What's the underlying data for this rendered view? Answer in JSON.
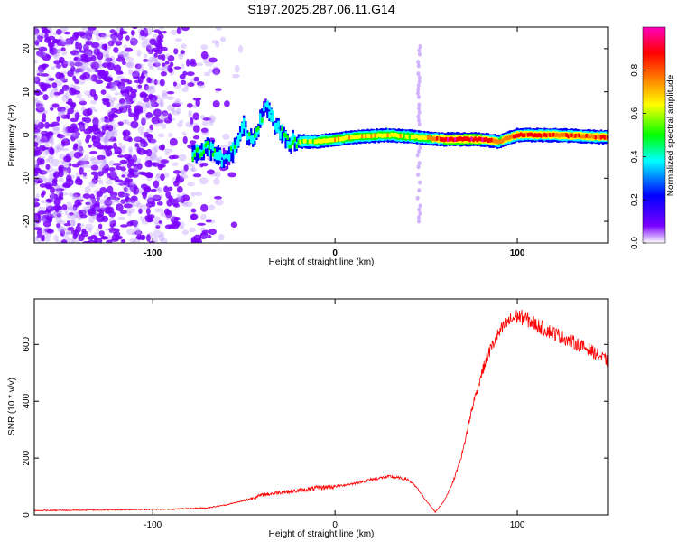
{
  "title": "S197.2025.287.06.11.G14",
  "chart_data": [
    {
      "type": "heatmap",
      "xlabel": "Height of straight line (km)",
      "ylabel": "Frequency (Hz)",
      "xlim": [
        -165,
        150
      ],
      "ylim": [
        -25,
        25
      ],
      "x_ticks": [
        -100,
        0,
        100
      ],
      "y_ticks": [
        -20,
        -10,
        0,
        10,
        20
      ],
      "colorbar": {
        "label": "Normalized spectral amplitude",
        "range": [
          0,
          1
        ],
        "ticks": [
          "0.0",
          "0.2",
          "0.4",
          "0.6",
          "0.8"
        ],
        "colors": [
          "#ffffff",
          "#7a00ff",
          "#0000ff",
          "#00ffff",
          "#00ff00",
          "#ffff00",
          "#ff7f00",
          "#ff0000",
          "#ff00bf"
        ]
      },
      "noise_region": {
        "x": [
          -165,
          -45
        ],
        "amplitude": 0.15
      },
      "ridge": {
        "points": [
          {
            "x": -78,
            "f": -4.5,
            "a": 0.45
          },
          {
            "x": -70,
            "f": -3.0,
            "a": 0.4
          },
          {
            "x": -60,
            "f": -6.0,
            "a": 0.3
          },
          {
            "x": -55,
            "f": -3.0,
            "a": 0.35
          },
          {
            "x": -50,
            "f": 2.0,
            "a": 0.35
          },
          {
            "x": -45,
            "f": -2.0,
            "a": 0.4
          },
          {
            "x": -38,
            "f": 7.0,
            "a": 0.3
          },
          {
            "x": -32,
            "f": 2.0,
            "a": 0.4
          },
          {
            "x": -25,
            "f": -1.5,
            "a": 0.45
          },
          {
            "x": -10,
            "f": -1.5,
            "a": 0.55
          },
          {
            "x": 10,
            "f": -0.5,
            "a": 0.6
          },
          {
            "x": 30,
            "f": 0.0,
            "a": 0.6
          },
          {
            "x": 45,
            "f": -0.5,
            "a": 0.55
          },
          {
            "x": 60,
            "f": -1.0,
            "a": 0.85
          },
          {
            "x": 80,
            "f": -1.0,
            "a": 0.85
          },
          {
            "x": 90,
            "f": -1.5,
            "a": 0.7
          },
          {
            "x": 100,
            "f": 0.0,
            "a": 0.8
          },
          {
            "x": 120,
            "f": 0.0,
            "a": 0.75
          },
          {
            "x": 150,
            "f": -0.5,
            "a": 0.75
          }
        ]
      },
      "spike": {
        "x": 46,
        "f_range": [
          -20,
          22
        ],
        "amplitude": 0.2
      }
    },
    {
      "type": "line",
      "xlabel": "Height of straight line (km)",
      "ylabel": "SNR (10 * v/v)",
      "xlim": [
        -165,
        150
      ],
      "ylim": [
        0,
        760
      ],
      "x_ticks": [
        -100,
        0,
        100
      ],
      "y_ticks": [
        0,
        200,
        400,
        600
      ],
      "series": [
        {
          "color": "#ff0000",
          "x": [
            -165,
            -120,
            -90,
            -70,
            -60,
            -50,
            -40,
            -30,
            -20,
            -10,
            0,
            10,
            20,
            30,
            40,
            45,
            50,
            55,
            60,
            65,
            70,
            75,
            80,
            85,
            90,
            95,
            100,
            105,
            110,
            120,
            130,
            140,
            150
          ],
          "y": [
            15,
            18,
            20,
            25,
            35,
            50,
            70,
            80,
            85,
            95,
            100,
            110,
            125,
            135,
            125,
            95,
            50,
            10,
            50,
            120,
            220,
            370,
            490,
            580,
            640,
            680,
            700,
            690,
            670,
            640,
            610,
            580,
            540
          ]
        }
      ]
    }
  ]
}
